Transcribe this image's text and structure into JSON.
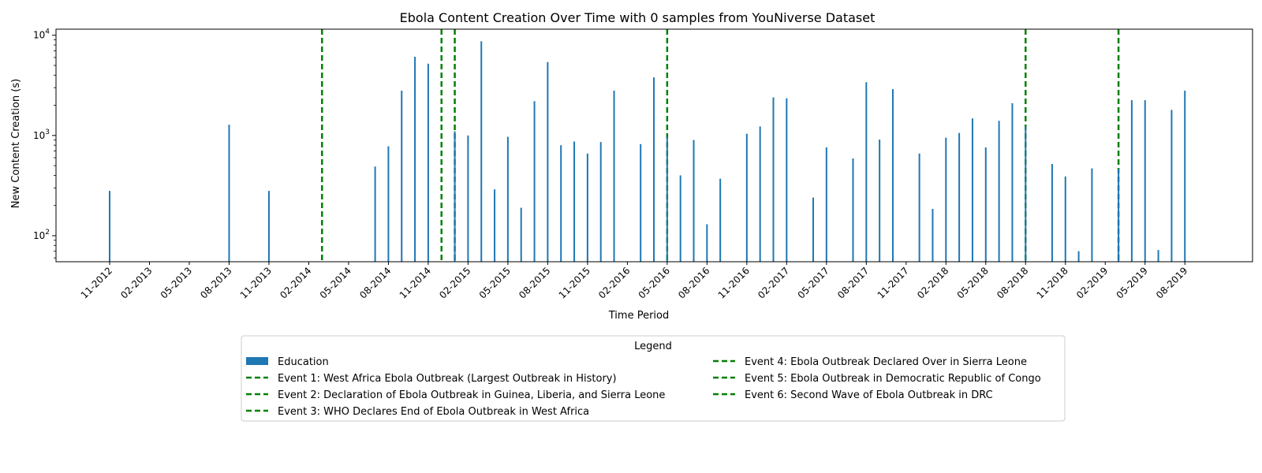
{
  "chart_data": {
    "type": "bar",
    "title": "Ebola Content Creation Over Time with 0 samples from YouNiverse Dataset",
    "xlabel": "Time Period",
    "ylabel": "New Content Creation (s)",
    "yscale": "log",
    "ylim": [
      55,
      11500
    ],
    "y_ticks": [
      {
        "value": 100,
        "base": "10",
        "exp": "2"
      },
      {
        "value": 1000,
        "base": "10",
        "exp": "3"
      },
      {
        "value": 10000,
        "base": "10",
        "exp": "4"
      }
    ],
    "x_tick_labels": [
      "11-2012",
      "02-2013",
      "05-2013",
      "08-2013",
      "11-2013",
      "02-2014",
      "05-2014",
      "08-2014",
      "11-2014",
      "02-2015",
      "05-2015",
      "08-2015",
      "11-2015",
      "02-2016",
      "05-2016",
      "08-2016",
      "11-2016",
      "02-2017",
      "05-2017",
      "08-2017",
      "11-2017",
      "02-2018",
      "05-2018",
      "08-2018",
      "11-2018",
      "02-2019",
      "05-2019",
      "08-2019"
    ],
    "months": [
      "11-2012",
      "12-2012",
      "01-2013",
      "02-2013",
      "03-2013",
      "04-2013",
      "05-2013",
      "06-2013",
      "07-2013",
      "08-2013",
      "09-2013",
      "10-2013",
      "11-2013",
      "12-2013",
      "01-2014",
      "02-2014",
      "03-2014",
      "04-2014",
      "05-2014",
      "06-2014",
      "07-2014",
      "08-2014",
      "09-2014",
      "10-2014",
      "11-2014",
      "12-2014",
      "01-2015",
      "02-2015",
      "03-2015",
      "04-2015",
      "05-2015",
      "06-2015",
      "07-2015",
      "08-2015",
      "09-2015",
      "10-2015",
      "11-2015",
      "12-2015",
      "01-2016",
      "02-2016",
      "03-2016",
      "04-2016",
      "05-2016",
      "06-2016",
      "07-2016",
      "08-2016",
      "09-2016",
      "10-2016",
      "11-2016",
      "12-2016",
      "01-2017",
      "02-2017",
      "03-2017",
      "04-2017",
      "05-2017",
      "06-2017",
      "07-2017",
      "08-2017",
      "09-2017",
      "10-2017",
      "11-2017",
      "12-2017",
      "01-2018",
      "02-2018",
      "03-2018",
      "04-2018",
      "05-2018",
      "06-2018",
      "07-2018",
      "08-2018",
      "09-2018",
      "10-2018",
      "11-2018",
      "12-2018",
      "01-2019",
      "02-2019",
      "03-2019",
      "04-2019",
      "05-2019",
      "06-2019",
      "07-2019",
      "08-2019",
      "09-2019"
    ],
    "series": [
      {
        "name": "Education",
        "color": "#1f77b4",
        "points": [
          {
            "x": "11-2012",
            "y": 280
          },
          {
            "x": "08-2013",
            "y": 1280
          },
          {
            "x": "11-2013",
            "y": 280
          },
          {
            "x": "07-2014",
            "y": 490
          },
          {
            "x": "08-2014",
            "y": 780
          },
          {
            "x": "09-2014",
            "y": 2800
          },
          {
            "x": "10-2014",
            "y": 6100
          },
          {
            "x": "11-2014",
            "y": 5200
          },
          {
            "x": "01-2015",
            "y": 1100
          },
          {
            "x": "02-2015",
            "y": 1000
          },
          {
            "x": "03-2015",
            "y": 8700
          },
          {
            "x": "04-2015",
            "y": 290
          },
          {
            "x": "05-2015",
            "y": 970
          },
          {
            "x": "06-2015",
            "y": 190
          },
          {
            "x": "07-2015",
            "y": 2200
          },
          {
            "x": "08-2015",
            "y": 5400
          },
          {
            "x": "09-2015",
            "y": 800
          },
          {
            "x": "10-2015",
            "y": 870
          },
          {
            "x": "11-2015",
            "y": 660
          },
          {
            "x": "12-2015",
            "y": 860
          },
          {
            "x": "01-2016",
            "y": 2800
          },
          {
            "x": "03-2016",
            "y": 820
          },
          {
            "x": "04-2016",
            "y": 3800
          },
          {
            "x": "05-2016",
            "y": 970
          },
          {
            "x": "06-2016",
            "y": 400
          },
          {
            "x": "07-2016",
            "y": 900
          },
          {
            "x": "08-2016",
            "y": 130
          },
          {
            "x": "09-2016",
            "y": 370
          },
          {
            "x": "11-2016",
            "y": 1040
          },
          {
            "x": "12-2016",
            "y": 1230
          },
          {
            "x": "01-2017",
            "y": 2400
          },
          {
            "x": "02-2017",
            "y": 2350
          },
          {
            "x": "04-2017",
            "y": 240
          },
          {
            "x": "05-2017",
            "y": 760
          },
          {
            "x": "07-2017",
            "y": 590
          },
          {
            "x": "08-2017",
            "y": 3400
          },
          {
            "x": "09-2017",
            "y": 910
          },
          {
            "x": "10-2017",
            "y": 2900
          },
          {
            "x": "12-2017",
            "y": 660
          },
          {
            "x": "01-2018",
            "y": 185
          },
          {
            "x": "02-2018",
            "y": 950
          },
          {
            "x": "03-2018",
            "y": 1060
          },
          {
            "x": "04-2018",
            "y": 1480
          },
          {
            "x": "05-2018",
            "y": 760
          },
          {
            "x": "06-2018",
            "y": 1400
          },
          {
            "x": "07-2018",
            "y": 2100
          },
          {
            "x": "08-2018",
            "y": 1230
          },
          {
            "x": "10-2018",
            "y": 520
          },
          {
            "x": "11-2018",
            "y": 390
          },
          {
            "x": "12-2018",
            "y": 70
          },
          {
            "x": "01-2019",
            "y": 470
          },
          {
            "x": "03-2019",
            "y": 460
          },
          {
            "x": "04-2019",
            "y": 2250
          },
          {
            "x": "05-2019",
            "y": 2250
          },
          {
            "x": "06-2019",
            "y": 72
          },
          {
            "x": "07-2019",
            "y": 1800
          },
          {
            "x": "08-2019",
            "y": 2800
          }
        ]
      }
    ],
    "events": [
      {
        "x": "03-2014",
        "label": "Event 1: West Africa Ebola Outbreak (Largest Outbreak in History)",
        "color": "#008000",
        "style": "dashed"
      },
      {
        "x": "12-2014",
        "label": "Event 2: Declaration of Ebola Outbreak in Guinea, Liberia, and Sierra Leone",
        "color": "#008000",
        "style": "dashed"
      },
      {
        "x": "01-2015",
        "label": "Event 3: WHO Declares End of Ebola Outbreak in West Africa",
        "color": "#008000",
        "style": "dashed"
      },
      {
        "x": "05-2016",
        "label": "Event 4: Ebola Outbreak Declared Over in Sierra Leone",
        "color": "#008000",
        "style": "dashed"
      },
      {
        "x": "08-2018",
        "label": "Event 5: Ebola Outbreak in Democratic Republic of Congo",
        "color": "#008000",
        "style": "dashed"
      },
      {
        "x": "03-2019",
        "label": "Event 6: Second Wave of Ebola Outbreak in DRC",
        "color": "#008000",
        "style": "dashed"
      }
    ],
    "legend": {
      "title": "Legend",
      "placement": "below"
    },
    "grid": false
  }
}
